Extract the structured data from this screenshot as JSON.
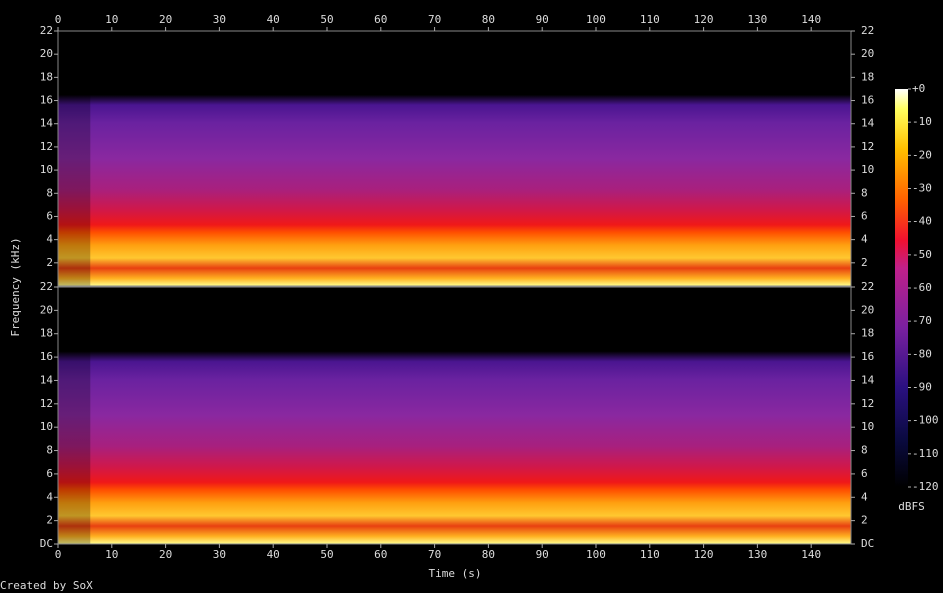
{
  "chart_data": {
    "type": "spectrogram",
    "x_label": "Time (s)",
    "y_label": "Frequency (kHz)",
    "xlim": [
      0,
      147.4
    ],
    "xticks": [
      0,
      10,
      20,
      30,
      40,
      50,
      60,
      70,
      80,
      90,
      100,
      110,
      120,
      130,
      140
    ],
    "channels": [
      {
        "ylim": [
          0,
          22
        ],
        "yticks": [
          2,
          4,
          6,
          8,
          10,
          12,
          14,
          16,
          18,
          20,
          22
        ]
      },
      {
        "ylim": [
          0,
          22
        ],
        "yticks": [
          {
            "value": 0,
            "label": "DC"
          },
          2,
          4,
          6,
          8,
          10,
          12,
          14,
          16,
          18,
          20,
          22
        ]
      }
    ],
    "colorbar": {
      "label": "dBFS",
      "lim": [
        -120,
        0
      ],
      "ticks": [
        {
          "value": 0,
          "label": "+0"
        },
        -10,
        -20,
        -30,
        -40,
        -50,
        -60,
        -70,
        -80,
        -90,
        -100,
        -110,
        -120
      ]
    },
    "credit": "Created by SoX"
  }
}
